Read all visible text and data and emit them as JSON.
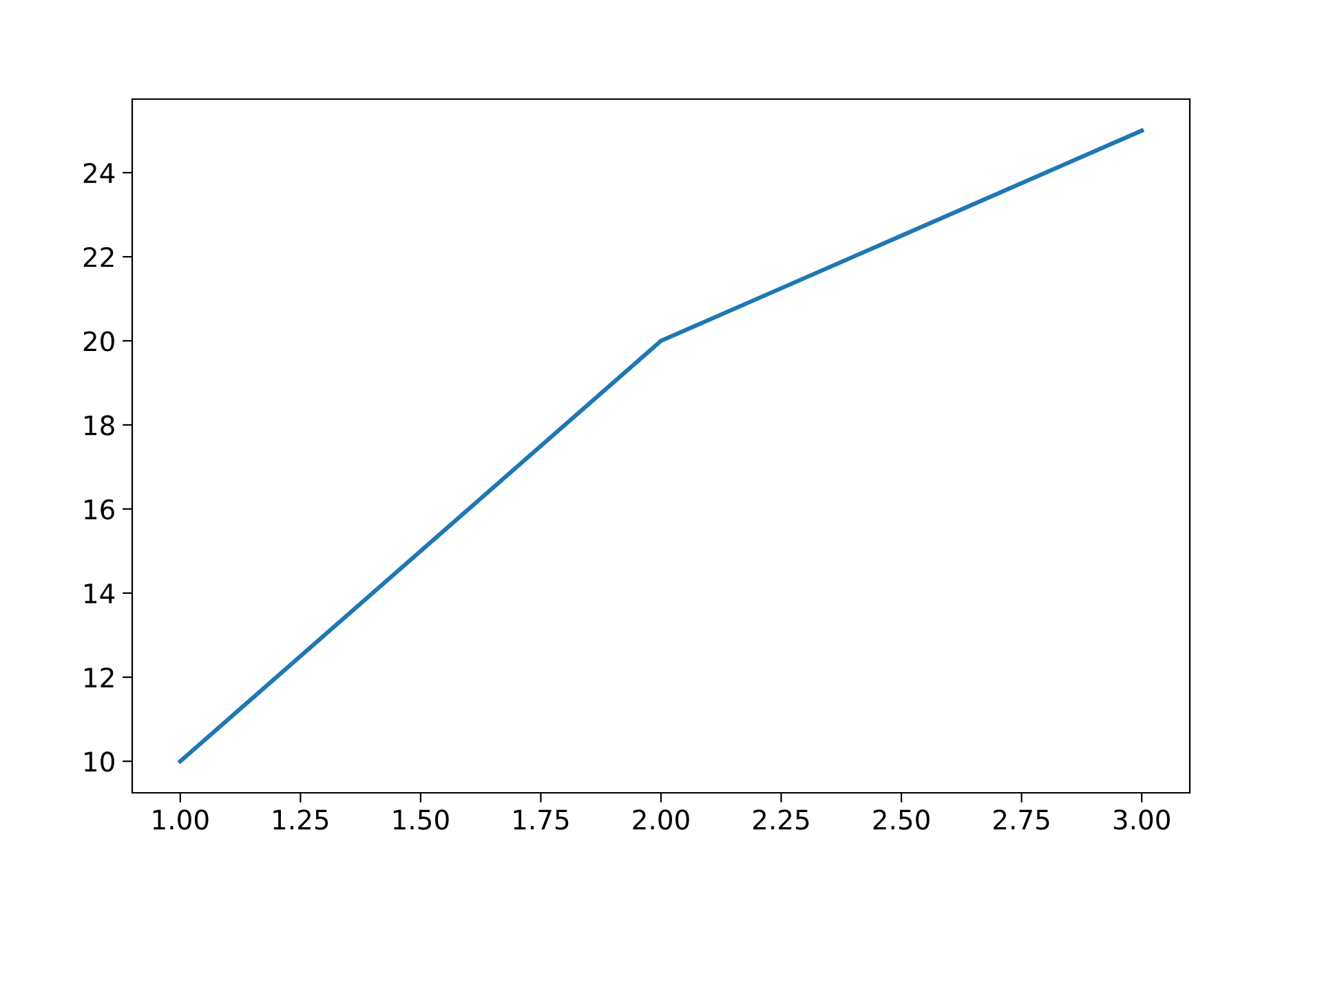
{
  "chart_data": {
    "type": "line",
    "x": [
      1,
      2,
      3
    ],
    "series": [
      {
        "color": "#1f77b4",
        "values": [
          10,
          20,
          25
        ]
      }
    ],
    "xlim": [
      0.9,
      3.1
    ],
    "ylim": [
      9.25,
      25.75
    ],
    "xticks": [
      {
        "value": 1,
        "label": "1.00"
      },
      {
        "value": 1.25,
        "label": "1.25"
      },
      {
        "value": 1.5,
        "label": "1.50"
      },
      {
        "value": 1.75,
        "label": "1.75"
      },
      {
        "value": 2,
        "label": "2.00"
      },
      {
        "value": 2.25,
        "label": "2.25"
      },
      {
        "value": 2.5,
        "label": "2.50"
      },
      {
        "value": 2.75,
        "label": "2.75"
      },
      {
        "value": 3,
        "label": "3.00"
      }
    ],
    "yticks": [
      10,
      12,
      14,
      16,
      18,
      20,
      22,
      24
    ],
    "grid": false,
    "legend": false,
    "marker": "none",
    "line_style": "solid"
  }
}
